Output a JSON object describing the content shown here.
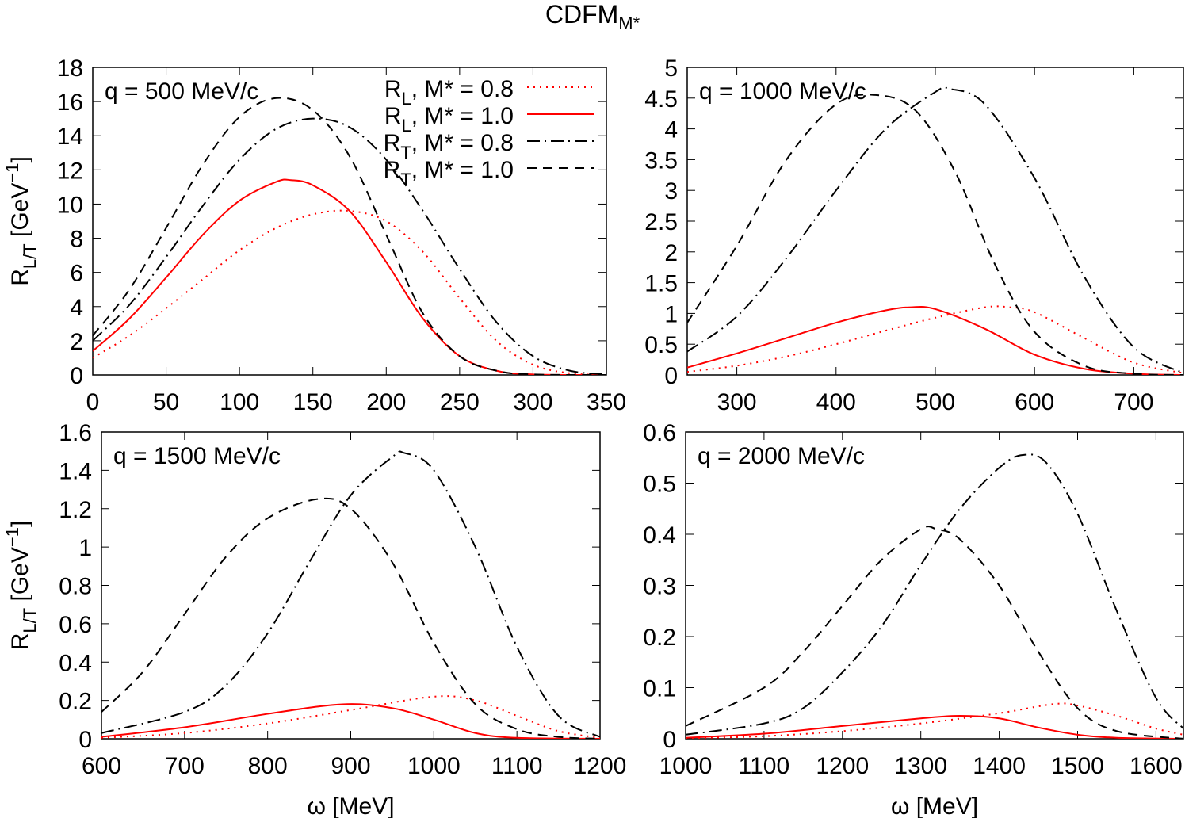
{
  "title": {
    "main": "CDFM",
    "sub": "M*"
  },
  "ylabel": {
    "main": "R",
    "sub": "L/T",
    "unit": "[GeV",
    "sup": "−1",
    "close": "]"
  },
  "xlabel": "ω [MeV]",
  "legend": [
    {
      "r": "R",
      "sub": "L",
      "text": ", M* = 0.8",
      "style": "dotted",
      "color": "#ff0000"
    },
    {
      "r": "R",
      "sub": "L",
      "text": ", M* = 1.0",
      "style": "solid",
      "color": "#ff0000"
    },
    {
      "r": "R",
      "sub": "T",
      "text": ", M* = 0.8",
      "style": "dashdot",
      "color": "#000000"
    },
    {
      "r": "R",
      "sub": "T",
      "text": ", M* = 1.0",
      "style": "dashed",
      "color": "#000000"
    }
  ],
  "chart_data": [
    {
      "type": "line",
      "label": "q = 500 MeV/c",
      "xlim": [
        0,
        350
      ],
      "ylim": [
        0,
        18
      ],
      "xticks": [
        0,
        50,
        100,
        150,
        200,
        250,
        300,
        350
      ],
      "yticks": [
        0,
        2,
        4,
        6,
        8,
        10,
        12,
        14,
        16,
        18
      ],
      "xlabel": "",
      "ylabel": "R_L/T [GeV^-1]",
      "legend": "top-right",
      "series": [
        {
          "name": "R_L, M* = 0.8",
          "x": [
            0,
            25,
            50,
            75,
            100,
            125,
            150,
            175,
            200,
            225,
            250,
            275,
            300,
            325,
            350
          ],
          "y": [
            1.0,
            2.3,
            3.9,
            5.6,
            7.3,
            8.6,
            9.4,
            9.6,
            9.0,
            7.2,
            4.5,
            2.0,
            0.6,
            0.1,
            0
          ]
        },
        {
          "name": "R_L, M* = 1.0",
          "x": [
            0,
            25,
            50,
            75,
            100,
            125,
            135,
            150,
            175,
            200,
            225,
            250,
            275,
            300,
            350
          ],
          "y": [
            1.4,
            3.3,
            5.7,
            8.2,
            10.2,
            11.3,
            11.4,
            11.1,
            9.6,
            6.6,
            3.3,
            1.1,
            0.25,
            0.03,
            0
          ]
        },
        {
          "name": "R_T, M* = 0.8",
          "x": [
            0,
            25,
            50,
            75,
            100,
            125,
            150,
            175,
            200,
            225,
            250,
            275,
            300,
            325,
            350
          ],
          "y": [
            2.0,
            4.1,
            6.9,
            9.9,
            12.6,
            14.4,
            15.0,
            14.5,
            12.6,
            9.6,
            6.2,
            3.1,
            1.1,
            0.25,
            0.03
          ]
        },
        {
          "name": "R_T, M* = 1.0",
          "x": [
            0,
            25,
            50,
            75,
            100,
            125,
            150,
            175,
            200,
            225,
            250,
            275,
            300,
            350
          ],
          "y": [
            2.3,
            5.0,
            8.6,
            12.3,
            15.1,
            16.2,
            15.5,
            12.8,
            8.2,
            3.6,
            1.1,
            0.25,
            0.03,
            0
          ]
        }
      ]
    },
    {
      "type": "line",
      "label": "q = 1000 MeV/c",
      "xlim": [
        250,
        750
      ],
      "ylim": [
        0,
        5
      ],
      "xticks": [
        300,
        400,
        500,
        600,
        700
      ],
      "yticks": [
        0,
        0.5,
        1,
        1.5,
        2,
        2.5,
        3,
        3.5,
        4,
        4.5,
        5
      ],
      "xlabel": "",
      "ylabel": "",
      "series": [
        {
          "name": "R_L, M* = 0.8",
          "x": [
            250,
            300,
            350,
            400,
            450,
            500,
            550,
            575,
            600,
            650,
            700,
            750
          ],
          "y": [
            0.05,
            0.15,
            0.3,
            0.5,
            0.72,
            0.93,
            1.1,
            1.1,
            1.02,
            0.6,
            0.2,
            0.03
          ]
        },
        {
          "name": "R_L, M* = 1.0",
          "x": [
            250,
            300,
            350,
            400,
            450,
            475,
            500,
            550,
            600,
            650,
            700,
            750
          ],
          "y": [
            0.12,
            0.35,
            0.6,
            0.85,
            1.05,
            1.1,
            1.07,
            0.75,
            0.33,
            0.1,
            0.02,
            0
          ]
        },
        {
          "name": "R_T, M* = 0.8",
          "x": [
            250,
            300,
            350,
            400,
            450,
            500,
            515,
            550,
            600,
            650,
            700,
            750
          ],
          "y": [
            0.38,
            0.95,
            1.9,
            3.0,
            4.0,
            4.6,
            4.65,
            4.4,
            3.2,
            1.6,
            0.45,
            0.03
          ]
        },
        {
          "name": "R_T, M* = 1.0",
          "x": [
            250,
            300,
            350,
            400,
            440,
            480,
            520,
            560,
            600,
            650,
            700,
            750
          ],
          "y": [
            0.85,
            2.1,
            3.5,
            4.4,
            4.55,
            4.3,
            3.3,
            1.8,
            0.7,
            0.15,
            0.02,
            0
          ]
        }
      ]
    },
    {
      "type": "line",
      "label": "q = 1500 MeV/c",
      "xlim": [
        600,
        1200
      ],
      "ylim": [
        0,
        1.6
      ],
      "xticks": [
        600,
        700,
        800,
        900,
        1000,
        1100,
        1200
      ],
      "yticks": [
        0,
        0.2,
        0.4,
        0.6,
        0.8,
        1,
        1.2,
        1.4,
        1.6
      ],
      "xlabel": "ω [MeV]",
      "ylabel": "R_L/T [GeV^-1]",
      "series": [
        {
          "name": "R_L, M* = 0.8",
          "x": [
            600,
            700,
            800,
            900,
            1000,
            1050,
            1100,
            1150,
            1200
          ],
          "y": [
            0.005,
            0.03,
            0.08,
            0.15,
            0.22,
            0.2,
            0.12,
            0.04,
            0.005
          ]
        },
        {
          "name": "R_L, M* = 1.0",
          "x": [
            600,
            700,
            800,
            890,
            950,
            1000,
            1050,
            1100,
            1200
          ],
          "y": [
            0.01,
            0.06,
            0.13,
            0.18,
            0.16,
            0.1,
            0.03,
            0.005,
            0
          ]
        },
        {
          "name": "R_T, M* = 0.8",
          "x": [
            600,
            700,
            750,
            800,
            850,
            900,
            950,
            965,
            1000,
            1050,
            1100,
            1150,
            1200
          ],
          "y": [
            0.03,
            0.14,
            0.28,
            0.55,
            0.92,
            1.27,
            1.47,
            1.49,
            1.4,
            1.0,
            0.48,
            0.12,
            0.01
          ]
        },
        {
          "name": "R_T, M* = 1.0",
          "x": [
            600,
            650,
            700,
            750,
            800,
            860,
            900,
            950,
            1000,
            1050,
            1100,
            1150,
            1200
          ],
          "y": [
            0.14,
            0.35,
            0.65,
            0.95,
            1.15,
            1.25,
            1.2,
            0.92,
            0.5,
            0.18,
            0.05,
            0.01,
            0
          ]
        }
      ]
    },
    {
      "type": "line",
      "label": "q = 2000 MeV/c",
      "xlim": [
        1000,
        1635
      ],
      "ylim": [
        0,
        0.6
      ],
      "xticks": [
        1000,
        1100,
        1200,
        1300,
        1400,
        1500,
        1600
      ],
      "yticks": [
        0,
        0.1,
        0.2,
        0.3,
        0.4,
        0.5,
        0.6
      ],
      "xlabel": "ω [MeV]",
      "ylabel": "",
      "series": [
        {
          "name": "R_L, M* = 0.8",
          "x": [
            1000,
            1100,
            1200,
            1300,
            1400,
            1470,
            1500,
            1550,
            1600,
            1635
          ],
          "y": [
            0.001,
            0.005,
            0.015,
            0.03,
            0.05,
            0.068,
            0.065,
            0.045,
            0.02,
            0.008
          ]
        },
        {
          "name": "R_L, M* = 1.0",
          "x": [
            1000,
            1100,
            1200,
            1300,
            1350,
            1400,
            1450,
            1500,
            1550,
            1635
          ],
          "y": [
            0.002,
            0.01,
            0.025,
            0.04,
            0.045,
            0.04,
            0.022,
            0.008,
            0.002,
            0
          ]
        },
        {
          "name": "R_T, M* = 0.8",
          "x": [
            1000,
            1100,
            1150,
            1200,
            1250,
            1300,
            1350,
            1400,
            1430,
            1460,
            1500,
            1550,
            1600,
            1635
          ],
          "y": [
            0.008,
            0.03,
            0.06,
            0.13,
            0.22,
            0.34,
            0.45,
            0.53,
            0.555,
            0.54,
            0.44,
            0.25,
            0.08,
            0.02
          ]
        },
        {
          "name": "R_T, M* = 1.0",
          "x": [
            1000,
            1100,
            1150,
            1200,
            1250,
            1300,
            1320,
            1350,
            1400,
            1450,
            1500,
            1550,
            1635
          ],
          "y": [
            0.025,
            0.1,
            0.17,
            0.26,
            0.35,
            0.41,
            0.41,
            0.39,
            0.3,
            0.17,
            0.06,
            0.015,
            0
          ]
        }
      ]
    }
  ]
}
